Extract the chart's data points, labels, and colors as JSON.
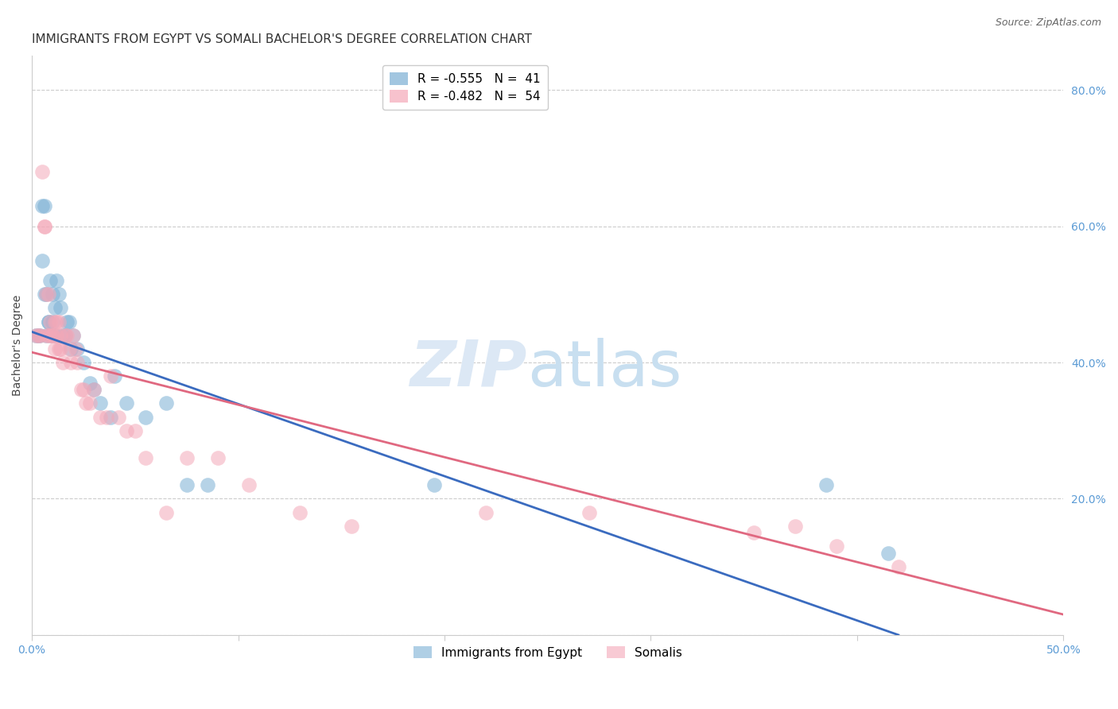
{
  "title": "IMMIGRANTS FROM EGYPT VS SOMALI BACHELOR'S DEGREE CORRELATION CHART",
  "source": "Source: ZipAtlas.com",
  "ylabel": "Bachelor's Degree",
  "xlim": [
    0.0,
    0.5
  ],
  "ylim": [
    0.0,
    0.85
  ],
  "blue_color": "#7bafd4",
  "pink_color": "#f4a8b8",
  "blue_line_color": "#3a6bbf",
  "pink_line_color": "#e06880",
  "egypt_x": [
    0.002,
    0.003,
    0.004,
    0.005,
    0.005,
    0.006,
    0.006,
    0.007,
    0.007,
    0.008,
    0.008,
    0.009,
    0.009,
    0.01,
    0.01,
    0.011,
    0.011,
    0.012,
    0.013,
    0.014,
    0.015,
    0.016,
    0.017,
    0.018,
    0.019,
    0.02,
    0.022,
    0.025,
    0.028,
    0.03,
    0.033,
    0.038,
    0.04,
    0.046,
    0.055,
    0.065,
    0.075,
    0.085,
    0.195,
    0.385,
    0.415
  ],
  "egypt_y": [
    0.44,
    0.44,
    0.44,
    0.63,
    0.55,
    0.63,
    0.5,
    0.5,
    0.44,
    0.46,
    0.46,
    0.52,
    0.44,
    0.5,
    0.46,
    0.48,
    0.44,
    0.52,
    0.5,
    0.48,
    0.44,
    0.44,
    0.46,
    0.46,
    0.42,
    0.44,
    0.42,
    0.4,
    0.37,
    0.36,
    0.34,
    0.32,
    0.38,
    0.34,
    0.32,
    0.34,
    0.22,
    0.22,
    0.22,
    0.22,
    0.12
  ],
  "somali_x": [
    0.002,
    0.003,
    0.004,
    0.005,
    0.006,
    0.006,
    0.007,
    0.007,
    0.008,
    0.008,
    0.009,
    0.009,
    0.01,
    0.01,
    0.011,
    0.011,
    0.012,
    0.012,
    0.013,
    0.013,
    0.014,
    0.014,
    0.015,
    0.016,
    0.017,
    0.018,
    0.019,
    0.02,
    0.021,
    0.022,
    0.024,
    0.025,
    0.026,
    0.028,
    0.03,
    0.033,
    0.036,
    0.038,
    0.042,
    0.046,
    0.05,
    0.055,
    0.065,
    0.075,
    0.09,
    0.105,
    0.13,
    0.155,
    0.22,
    0.27,
    0.35,
    0.37,
    0.39,
    0.42
  ],
  "somali_y": [
    0.44,
    0.44,
    0.44,
    0.68,
    0.6,
    0.6,
    0.5,
    0.44,
    0.5,
    0.44,
    0.46,
    0.44,
    0.44,
    0.44,
    0.46,
    0.42,
    0.46,
    0.44,
    0.46,
    0.42,
    0.42,
    0.44,
    0.4,
    0.44,
    0.44,
    0.42,
    0.4,
    0.44,
    0.42,
    0.4,
    0.36,
    0.36,
    0.34,
    0.34,
    0.36,
    0.32,
    0.32,
    0.38,
    0.32,
    0.3,
    0.3,
    0.26,
    0.18,
    0.26,
    0.26,
    0.22,
    0.18,
    0.16,
    0.18,
    0.18,
    0.15,
    0.16,
    0.13,
    0.1
  ],
  "egypt_line_x": [
    0.0,
    0.42
  ],
  "egypt_line_y": [
    0.445,
    0.0
  ],
  "somali_line_x": [
    0.0,
    0.5
  ],
  "somali_line_y": [
    0.415,
    0.03
  ],
  "grid_color": "#cccccc",
  "background_color": "#ffffff",
  "title_fontsize": 11,
  "axis_label_fontsize": 10,
  "tick_fontsize": 10,
  "legend_fontsize": 11
}
